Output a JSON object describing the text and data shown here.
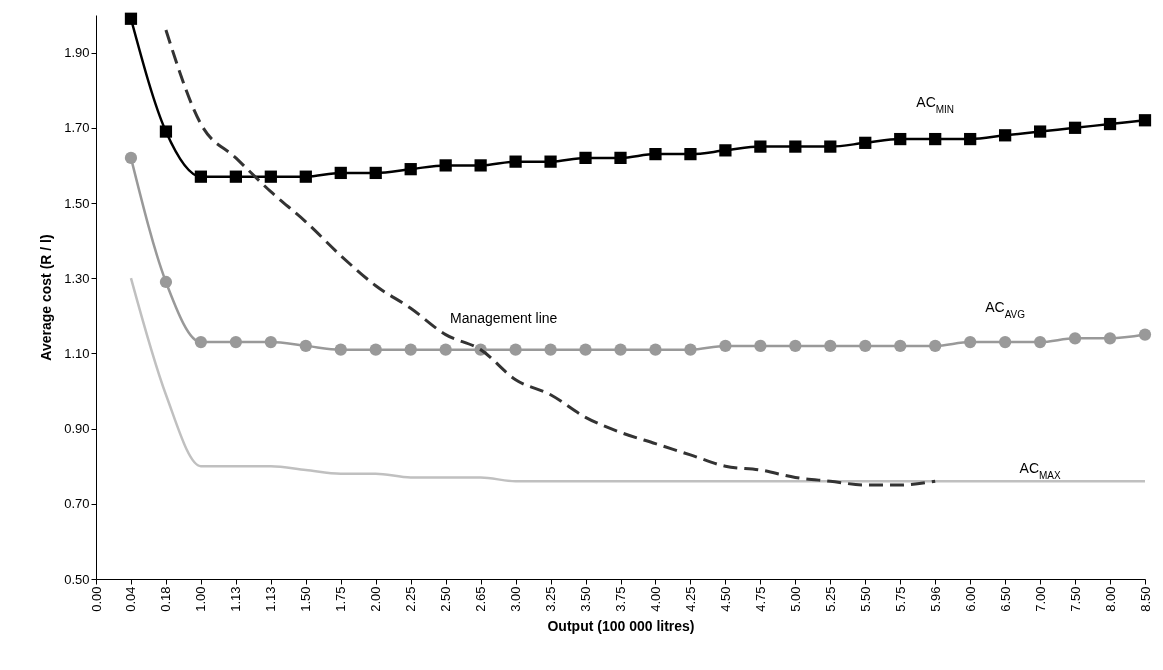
{
  "chart_data": {
    "type": "line",
    "xlabel": "Output (100 000 litres)",
    "ylabel": "Average cost (R / l)",
    "categories": [
      "0.00",
      "0.04",
      "0.18",
      "1.00",
      "1.13",
      "1.13",
      "1.50",
      "1.75",
      "2.00",
      "2.25",
      "2.50",
      "2.65",
      "3.00",
      "3.25",
      "3.50",
      "3.75",
      "4.00",
      "4.25",
      "4.50",
      "4.75",
      "5.00",
      "5.25",
      "5.50",
      "5.75",
      "5.96",
      "6.00",
      "6.50",
      "7.00",
      "7.50",
      "8.00",
      "8.50"
    ],
    "ylim": [
      0.5,
      2.0
    ],
    "yticks": [
      {
        "value": 0.5,
        "label": "0.50"
      },
      {
        "value": 0.7,
        "label": "0.70"
      },
      {
        "value": 0.9,
        "label": "0.90"
      },
      {
        "value": 1.1,
        "label": "1.10"
      },
      {
        "value": 1.3,
        "label": "1.30"
      },
      {
        "value": 1.5,
        "label": "1.50"
      },
      {
        "value": 1.7,
        "label": "1.70"
      },
      {
        "value": 1.9,
        "label": "1.90"
      }
    ],
    "grid": false,
    "series": [
      {
        "name": "AC$_{MIN}$",
        "color": "#000000",
        "marker": "square",
        "line_style": "solid",
        "values": [
          null,
          1.99,
          1.69,
          1.57,
          1.57,
          1.57,
          1.57,
          1.58,
          1.58,
          1.59,
          1.6,
          1.6,
          1.61,
          1.61,
          1.62,
          1.62,
          1.63,
          1.63,
          1.64,
          1.65,
          1.65,
          1.65,
          1.66,
          1.67,
          1.67,
          1.67,
          1.68,
          1.69,
          1.7,
          1.71,
          1.72
        ]
      },
      {
        "name": "AC$_{AVG}$",
        "color": "#999999",
        "marker": "circle",
        "line_style": "solid",
        "values": [
          null,
          1.62,
          1.29,
          1.13,
          1.13,
          1.13,
          1.12,
          1.11,
          1.11,
          1.11,
          1.11,
          1.11,
          1.11,
          1.11,
          1.11,
          1.11,
          1.11,
          1.11,
          1.12,
          1.12,
          1.12,
          1.12,
          1.12,
          1.12,
          1.12,
          1.13,
          1.13,
          1.13,
          1.14,
          1.14,
          1.15
        ]
      },
      {
        "name": "AC$_{MAX}$",
        "color": "#c0c0c0",
        "marker": "none",
        "line_style": "solid",
        "values": [
          null,
          1.3,
          0.99,
          0.8,
          0.8,
          0.8,
          0.79,
          0.78,
          0.78,
          0.77,
          0.77,
          0.77,
          0.76,
          0.76,
          0.76,
          0.76,
          0.76,
          0.76,
          0.76,
          0.76,
          0.76,
          0.76,
          0.76,
          0.76,
          0.76,
          0.76,
          0.76,
          0.76,
          0.76,
          0.76,
          0.76
        ]
      },
      {
        "name": "Management line",
        "color": "#333333",
        "marker": "none",
        "line_style": "dashed",
        "values": [
          null,
          null,
          1.96,
          1.71,
          1.62,
          1.53,
          1.45,
          1.36,
          1.28,
          1.22,
          1.15,
          1.11,
          1.03,
          0.99,
          0.93,
          0.89,
          0.86,
          0.83,
          0.8,
          0.79,
          0.77,
          0.76,
          0.75,
          0.75,
          0.76,
          null,
          null,
          null,
          null,
          null,
          null
        ]
      }
    ]
  }
}
